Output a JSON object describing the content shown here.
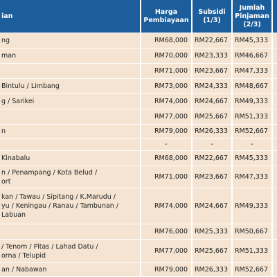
{
  "table": {
    "header": {
      "place": [
        "ian"
      ],
      "columns": [
        [
          "Harga",
          "Pembiayaan"
        ],
        [
          "Subsidi",
          "(1/3)"
        ],
        [
          "Jumlah",
          "Pinjaman",
          "(2/3)"
        ]
      ]
    },
    "rows": [
      {
        "place": [
          "ng"
        ],
        "values": [
          "RM68,000",
          "RM22,667",
          "RM45,333"
        ]
      },
      {
        "place": [
          "man"
        ],
        "values": [
          "RM70,000",
          "RM23,333",
          "RM46,667"
        ]
      },
      {
        "place": [],
        "values": [
          "RM71,000",
          "RM23,667",
          "RM47,333"
        ]
      },
      {
        "place": [
          "Bintulu / Limbang"
        ],
        "values": [
          "RM73,000",
          "RM24,333",
          "RM48,667"
        ]
      },
      {
        "place": [
          "g / Sarikei"
        ],
        "values": [
          "RM74,000",
          "RM24,667",
          "RM49,333"
        ]
      },
      {
        "place": [],
        "values": [
          "RM77,000",
          "RM25,667",
          "RM51,333"
        ]
      },
      {
        "place": [
          "n"
        ],
        "values": [
          "RM79,000",
          "RM26,333",
          "RM52,667"
        ]
      },
      {
        "place": [],
        "values": [
          "-",
          "-",
          "-"
        ]
      },
      {
        "place": [
          "Kinabalu"
        ],
        "values": [
          "RM68,000",
          "RM22,667",
          "RM45,333"
        ]
      },
      {
        "place": [
          "n / Penampang / Kota Belud /",
          "ort"
        ],
        "values": [
          "RM71,000",
          "RM23,667",
          "RM47,333"
        ]
      },
      {
        "place": [
          "kan / Tawau / Sipitang / K.Marudu /",
          "yu / Keningau / Ranau / Tambunan /",
          "Labuan"
        ],
        "values": [
          "RM74,000",
          "RM24,667",
          "RM49,333"
        ]
      },
      {
        "place": [],
        "values": [
          "RM76,000",
          "RM25,333",
          "RM50,667"
        ]
      },
      {
        "place": [
          "/ Tenom / Pitas / Lahad Datu /",
          "orna / Telupid"
        ],
        "values": [
          "RM77,000",
          "RM25,667",
          "RM51,333"
        ]
      },
      {
        "place": [
          "an / Nabawan"
        ],
        "values": [
          "RM79,000",
          "RM26,333",
          "RM52,667"
        ]
      }
    ]
  }
}
